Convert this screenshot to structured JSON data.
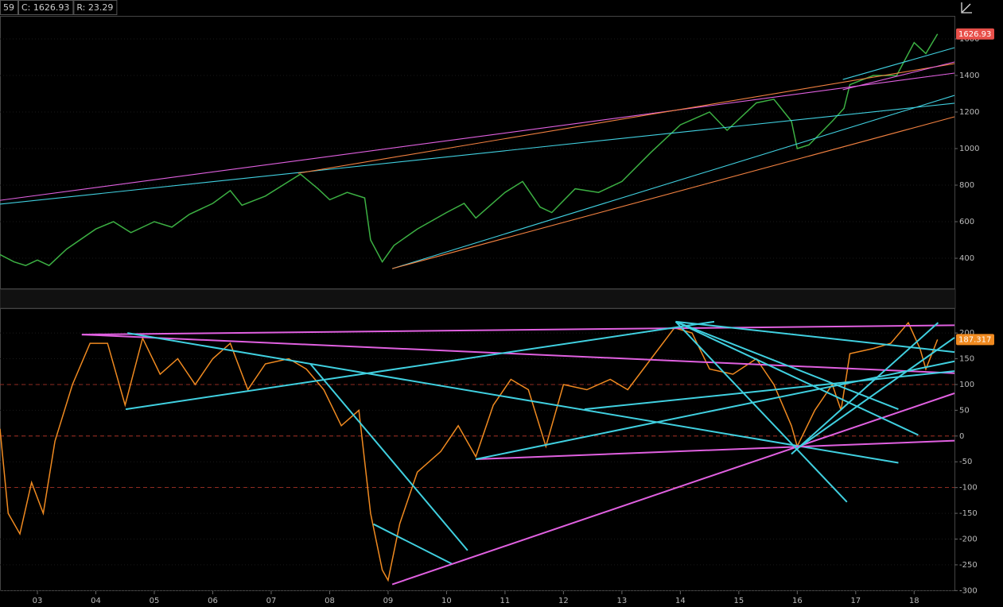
{
  "header": {
    "items": [
      "59",
      "C: 1626.93",
      "R: 23.29"
    ]
  },
  "chart_data": [
    {
      "type": "line",
      "color": "#3cb043",
      "last_color": "#e8504a",
      "x": [
        2002.36,
        2002.6,
        2002.8,
        2003.0,
        2003.2,
        2003.5,
        2004.0,
        2004.3,
        2004.6,
        2005.0,
        2005.3,
        2005.6,
        2006.0,
        2006.3,
        2006.5,
        2006.9,
        2007.3,
        2007.5,
        2007.8,
        2008.0,
        2008.3,
        2008.6,
        2008.7,
        2008.9,
        2009.1,
        2009.5,
        2010.0,
        2010.3,
        2010.5,
        2011.0,
        2011.3,
        2011.6,
        2011.8,
        2012.2,
        2012.6,
        2013.0,
        2013.5,
        2014.0,
        2014.5,
        2014.8,
        2015.3,
        2015.6,
        2015.9,
        2016.0,
        2016.2,
        2016.6,
        2016.8,
        2016.9,
        2017.3,
        2017.7,
        2018.0,
        2018.2,
        2018.4
      ],
      "values": [
        420,
        380,
        360,
        390,
        360,
        450,
        560,
        600,
        540,
        600,
        570,
        640,
        700,
        770,
        690,
        740,
        820,
        860,
        780,
        720,
        760,
        730,
        500,
        380,
        470,
        560,
        650,
        700,
        620,
        760,
        820,
        680,
        650,
        780,
        760,
        820,
        980,
        1130,
        1200,
        1100,
        1250,
        1270,
        1150,
        1000,
        1020,
        1150,
        1220,
        1350,
        1400,
        1400,
        1580,
        1520,
        1626.93
      ],
      "xlim": [
        2002.36,
        2018.69
      ],
      "ylim": [
        235,
        1726
      ],
      "yticks": [
        400,
        600,
        800,
        1000,
        1200,
        1400,
        1600
      ],
      "lines": [
        {
          "color": "#e060e0",
          "points": [
            [
              2002.36,
              717
            ],
            [
              2018.69,
              1413
            ]
          ]
        },
        {
          "color": "#40d0e0",
          "points": [
            [
              2002.36,
              696
            ],
            [
              2018.69,
              1248
            ]
          ]
        },
        {
          "color": "#f08040",
          "points": [
            [
              2007.46,
              865
            ],
            [
              2018.69,
              1465
            ]
          ]
        },
        {
          "color": "#40d0e0",
          "points": [
            [
              2009.07,
              343
            ],
            [
              2018.69,
              1291
            ]
          ]
        },
        {
          "color": "#f08040",
          "points": [
            [
              2009.07,
              343
            ],
            [
              2018.69,
              1174
            ]
          ]
        },
        {
          "color": "#40d0e0",
          "points": [
            [
              2016.78,
              1378
            ],
            [
              2018.69,
              1552
            ]
          ]
        },
        {
          "color": "#e060e0",
          "points": [
            [
              2016.78,
              1322
            ],
            [
              2018.69,
              1474
            ]
          ]
        }
      ]
    },
    {
      "type": "line",
      "color": "#f08a20",
      "last_color": "#f08a20",
      "x": [
        2002.36,
        2002.5,
        2002.7,
        2002.9,
        2003.1,
        2003.3,
        2003.6,
        2003.9,
        2004.2,
        2004.5,
        2004.8,
        2005.1,
        2005.4,
        2005.7,
        2006.0,
        2006.3,
        2006.6,
        2006.9,
        2007.3,
        2007.6,
        2007.9,
        2008.2,
        2008.5,
        2008.7,
        2008.9,
        2009.0,
        2009.2,
        2009.5,
        2009.9,
        2010.2,
        2010.5,
        2010.8,
        2011.1,
        2011.4,
        2011.7,
        2012.0,
        2012.4,
        2012.8,
        2013.1,
        2013.5,
        2013.9,
        2014.2,
        2014.5,
        2014.9,
        2015.3,
        2015.6,
        2015.9,
        2016.0,
        2016.3,
        2016.6,
        2016.75,
        2016.9,
        2017.3,
        2017.6,
        2017.9,
        2018.1,
        2018.2,
        2018.4
      ],
      "values": [
        14,
        -150,
        -190,
        -90,
        -150,
        -10,
        100,
        180,
        180,
        60,
        190,
        120,
        150,
        100,
        150,
        180,
        90,
        140,
        150,
        130,
        90,
        20,
        50,
        -150,
        -260,
        -280,
        -170,
        -70,
        -30,
        20,
        -40,
        60,
        110,
        90,
        -20,
        100,
        90,
        110,
        90,
        150,
        210,
        200,
        130,
        120,
        150,
        100,
        20,
        -20,
        50,
        100,
        50,
        160,
        170,
        180,
        220,
        170,
        130,
        187.317
      ],
      "xlim": [
        2002.36,
        2018.69
      ],
      "ylim": [
        -301,
        248
      ],
      "yticks": [
        -300,
        -250,
        -200,
        -150,
        -100,
        -50,
        0,
        50,
        100,
        150,
        200
      ],
      "hlines": [
        100,
        0,
        -100
      ],
      "hline_color": "#c0392b",
      "xticks": [
        {
          "value": 2003,
          "label": "03"
        },
        {
          "value": 2004,
          "label": "04"
        },
        {
          "value": 2005,
          "label": "05"
        },
        {
          "value": 2006,
          "label": "06"
        },
        {
          "value": 2007,
          "label": "07"
        },
        {
          "value": 2008,
          "label": "08"
        },
        {
          "value": 2009,
          "label": "09"
        },
        {
          "value": 2010,
          "label": "10"
        },
        {
          "value": 2011,
          "label": "11"
        },
        {
          "value": 2012,
          "label": "12"
        },
        {
          "value": 2013,
          "label": "13"
        },
        {
          "value": 2014,
          "label": "14"
        },
        {
          "value": 2015,
          "label": "15"
        },
        {
          "value": 2016,
          "label": "16"
        },
        {
          "value": 2017,
          "label": "17"
        },
        {
          "value": 2018,
          "label": "18"
        }
      ],
      "lines": [
        {
          "color": "#e060e0",
          "points": [
            [
              2003.76,
              197
            ],
            [
              2018.69,
              215
            ]
          ]
        },
        {
          "color": "#e060e0",
          "points": [
            [
              2003.76,
              197
            ],
            [
              2018.69,
              122
            ]
          ]
        },
        {
          "color": "#40d0e0",
          "points": [
            [
              2004.54,
              200
            ],
            [
              2017.73,
              -52
            ]
          ]
        },
        {
          "color": "#40d0e0",
          "points": [
            [
              2004.51,
              52
            ],
            [
              2014.58,
              222
            ]
          ]
        },
        {
          "color": "#40d0e0",
          "points": [
            [
              2007.67,
              140
            ],
            [
              2010.36,
              -222
            ]
          ]
        },
        {
          "color": "#40d0e0",
          "points": [
            [
              2008.75,
              -171
            ],
            [
              2010.09,
              -248
            ]
          ]
        },
        {
          "color": "#e060e0",
          "points": [
            [
              2009.07,
              -288
            ],
            [
              2018.69,
              83
            ]
          ]
        },
        {
          "color": "#e060e0",
          "points": [
            [
              2010.5,
              -45
            ],
            [
              2018.69,
              -9
            ]
          ]
        },
        {
          "color": "#40d0e0",
          "points": [
            [
              2010.5,
              -45
            ],
            [
              2018.69,
              145
            ]
          ]
        },
        {
          "color": "#40d0e0",
          "points": [
            [
              2012.36,
              52
            ],
            [
              2018.69,
              126
            ]
          ]
        },
        {
          "color": "#40d0e0",
          "points": [
            [
              2013.92,
              222
            ],
            [
              2016.85,
              -128
            ]
          ]
        },
        {
          "color": "#40d0e0",
          "points": [
            [
              2013.92,
              222
            ],
            [
              2018.69,
              163
            ]
          ]
        },
        {
          "color": "#40d0e0",
          "points": [
            [
              2013.92,
              222
            ],
            [
              2017.73,
              52
            ]
          ]
        },
        {
          "color": "#40d0e0",
          "points": [
            [
              2013.92,
              222
            ],
            [
              2018.07,
              2
            ]
          ]
        },
        {
          "color": "#40d0e0",
          "points": [
            [
              2015.9,
              -35
            ],
            [
              2018.41,
              220
            ]
          ]
        },
        {
          "color": "#40d0e0",
          "points": [
            [
              2016.03,
              -22
            ],
            [
              2018.69,
              191
            ]
          ]
        }
      ]
    }
  ]
}
